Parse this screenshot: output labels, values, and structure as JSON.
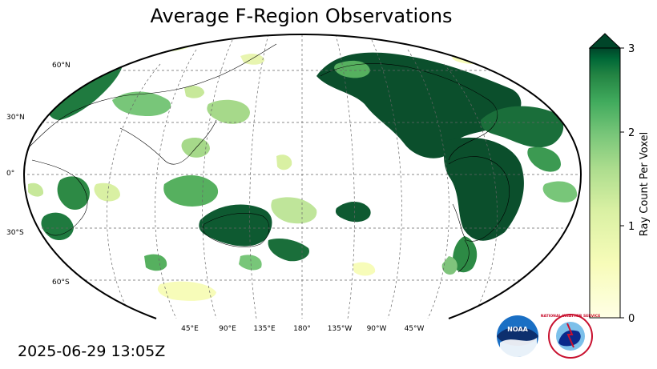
{
  "title": "Average F-Region Observations",
  "timestamp": "2025-06-29 13:05Z",
  "lat_labels": [
    "60°N",
    "30°N",
    "0°",
    "30°S",
    "60°S"
  ],
  "lon_labels": [
    "45°E",
    "90°E",
    "135°E",
    "180°",
    "135°W",
    "90°W",
    "45°W"
  ],
  "colorbar": {
    "label": "Ray Count Per Voxel",
    "ticks": [
      "0",
      "1",
      "2",
      "3"
    ],
    "min": 0,
    "max": 3,
    "extend": "max",
    "colormap": "YlGn",
    "colors": {
      "low": "#ffffe5",
      "mid": "#78c679",
      "high": "#004529"
    }
  },
  "logos": {
    "noaa": "NOAA",
    "nws": "NATIONAL WEATHER SERVICE"
  }
}
